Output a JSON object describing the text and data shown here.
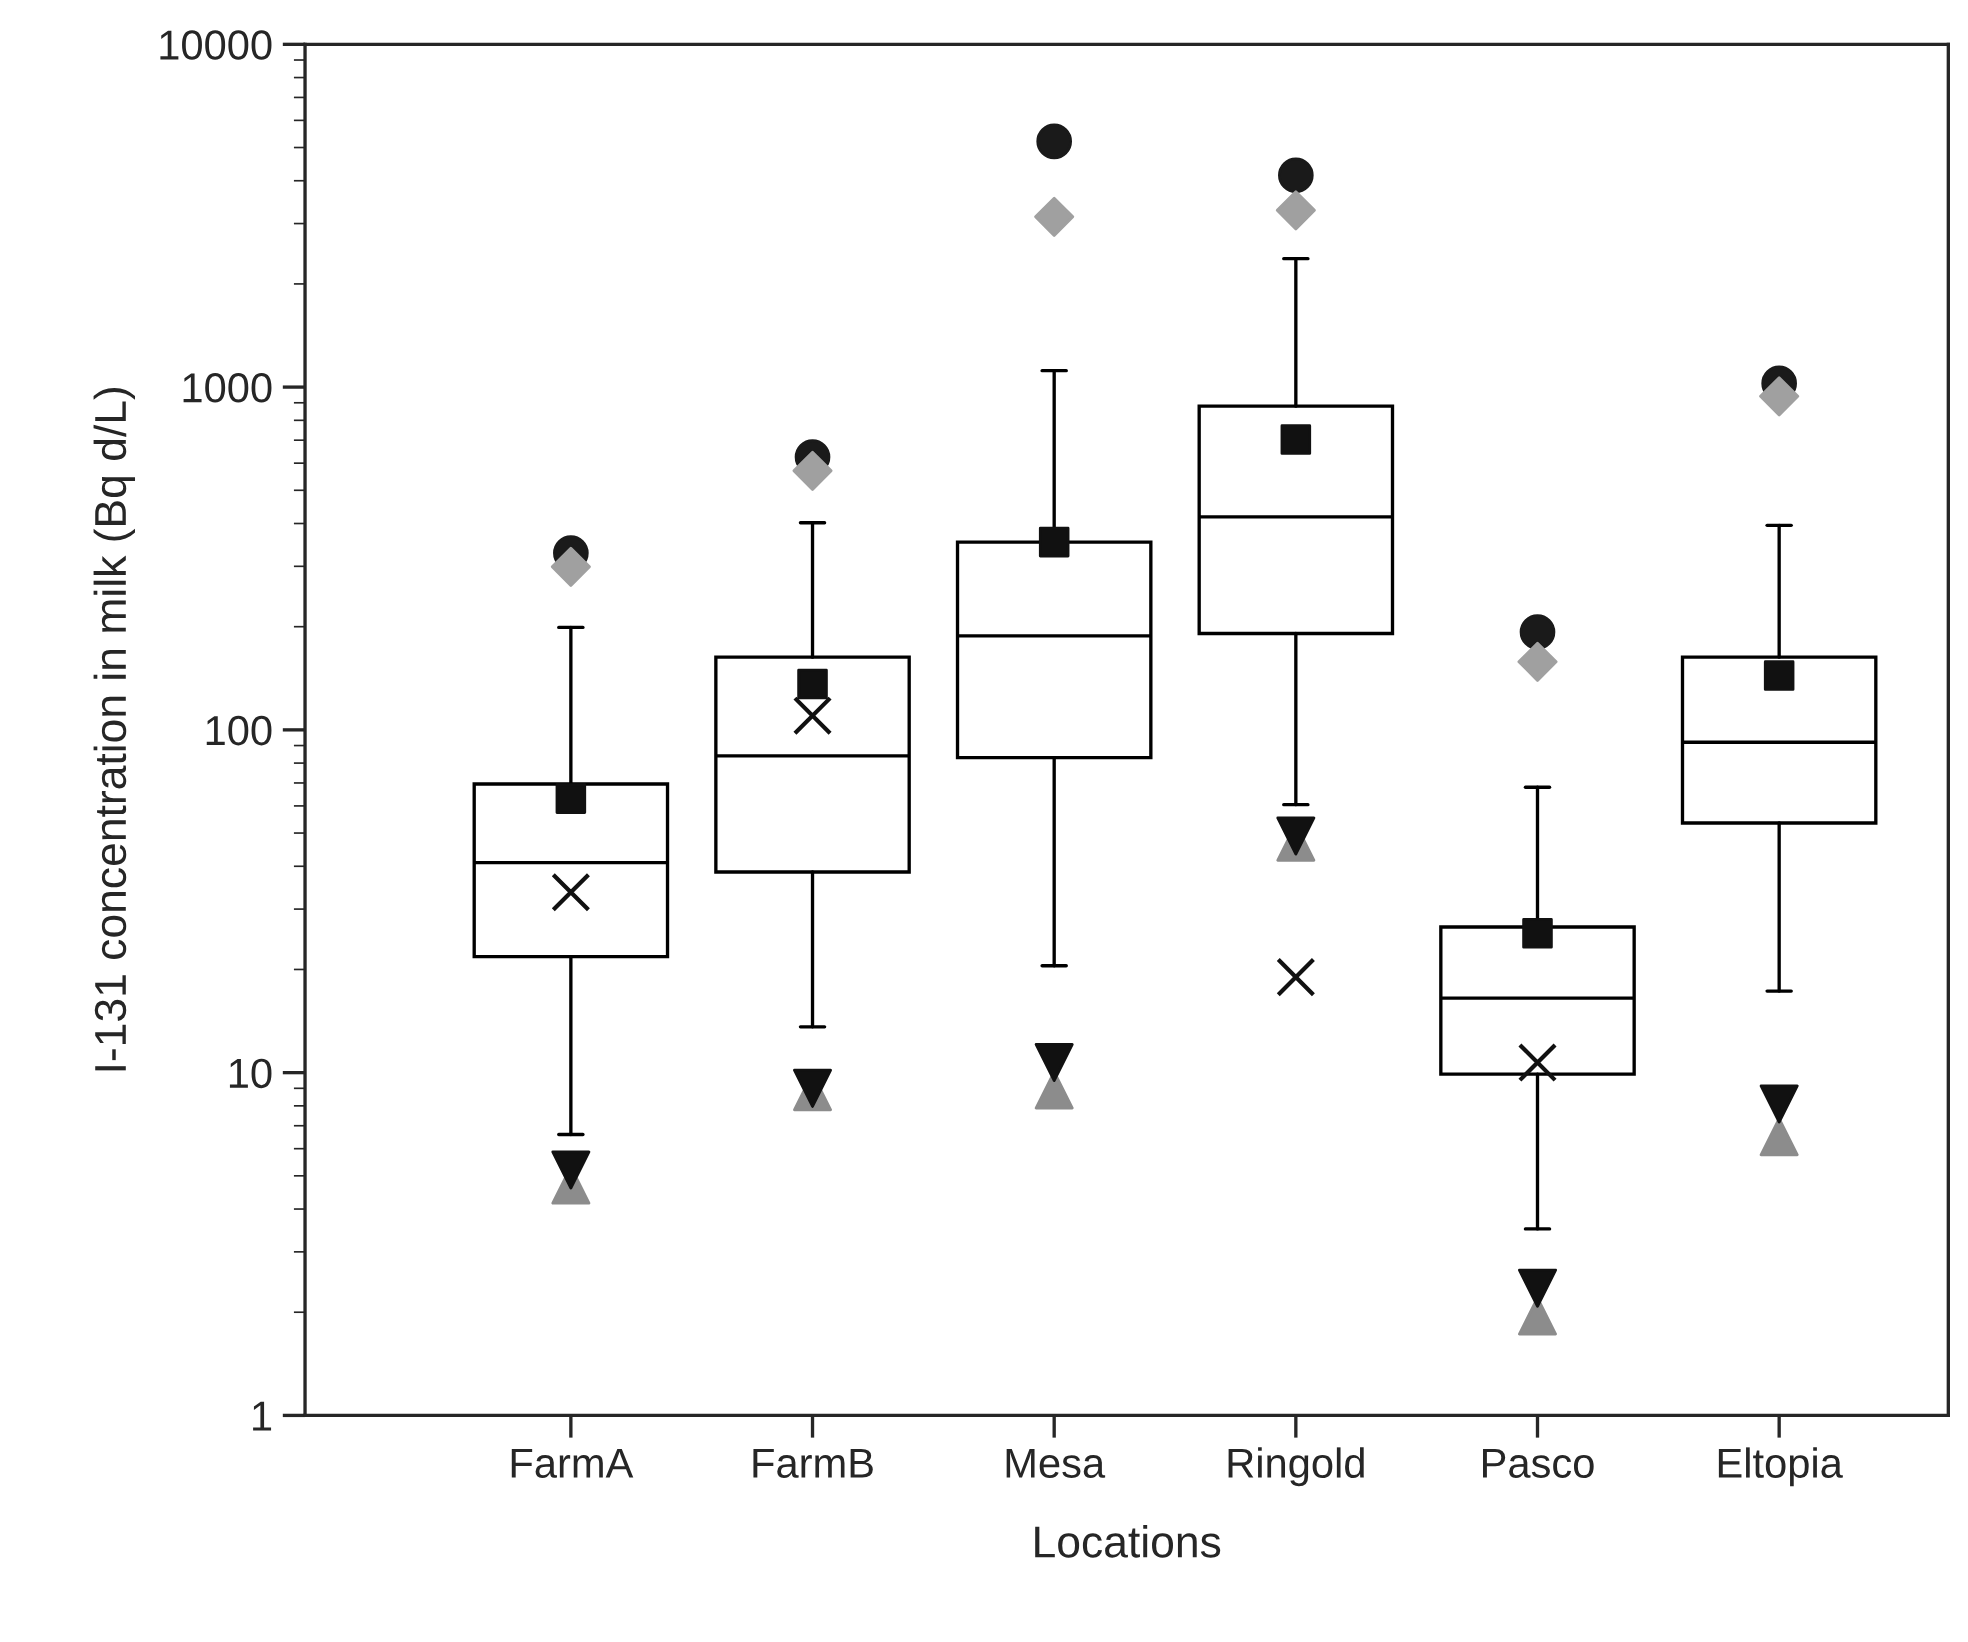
{
  "chart_data": {
    "type": "box",
    "xlabel": "Locations",
    "ylabel": "I-131 concentration in milk (Bq d/L)",
    "categories": [
      "FarmA",
      "FarmB",
      "Mesa",
      "Ringold",
      "Pasco",
      "Eltopia"
    ],
    "log": "y",
    "ylim": [
      1,
      10000
    ],
    "yticks": [
      1,
      10,
      100,
      1000,
      10000
    ],
    "grid": false,
    "legend": false,
    "boxes": [
      {
        "low": 6.6,
        "q1": 21.8,
        "median": 41,
        "q3": 69.5,
        "high": 199
      },
      {
        "low": 13.6,
        "q1": 38.5,
        "median": 84,
        "q3": 163,
        "high": 402
      },
      {
        "low": 20.5,
        "q1": 83,
        "median": 188,
        "q3": 353,
        "high": 1117
      },
      {
        "low": 60.5,
        "q1": 191,
        "median": 418,
        "q3": 880,
        "high": 2370
      },
      {
        "low": 3.5,
        "q1": 9.9,
        "median": 16.5,
        "q3": 26.6,
        "high": 68
      },
      {
        "low": 17.3,
        "q1": 53.5,
        "median": 92,
        "q3": 163,
        "high": 395
      }
    ],
    "series": [
      {
        "type": "scatter",
        "marker": "circle",
        "color": "#1a1a1a",
        "values": [
          328,
          625,
          5210,
          4150,
          193,
          1025
        ]
      },
      {
        "type": "scatter",
        "marker": "diamond",
        "color": "#a0a0a0",
        "values": [
          299,
          570,
          3140,
          3280,
          158,
          940
        ]
      },
      {
        "type": "scatter",
        "marker": "square",
        "color": "#111111",
        "values": [
          63,
          136,
          353,
          703,
          25.5,
          144
        ]
      },
      {
        "type": "scatter",
        "marker": "cross",
        "color": "#111111",
        "values": [
          33.6,
          110,
          null,
          19,
          10.7,
          null
        ]
      },
      {
        "type": "scatter",
        "marker": "triangle",
        "color": "#8c8c8c",
        "values": [
          4.7,
          8.8,
          8.9,
          47,
          1.95,
          6.5
        ]
      },
      {
        "type": "scatter",
        "marker": "triangle_down",
        "color": "#111111",
        "values": [
          5.2,
          9.0,
          10.7,
          49,
          2.35,
          8.1
        ]
      }
    ]
  }
}
